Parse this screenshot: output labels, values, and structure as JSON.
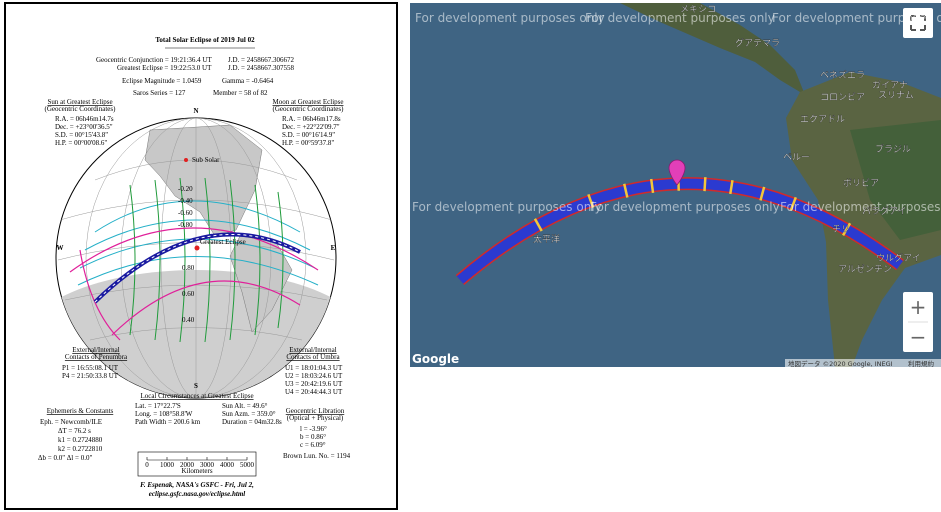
{
  "doc": {
    "title": "Total Solar Eclipse of  2019 Jul 02",
    "summary": [
      [
        "Geocentric Conjunction =  19:21:36.4 UT",
        "J.D. =  2458667.306672"
      ],
      [
        "Greatest Eclipse =  19:22:53.0 UT",
        "J.D. =  2458667.307558"
      ],
      [
        "Eclipse Magnitude =  1.0459",
        "Gamma =  -0.6464"
      ],
      [
        "Saros Series =  127",
        "Member =  58 of 82"
      ]
    ],
    "sun": {
      "heading": "Sun at Greatest Eclipse",
      "subheading": "(Geocentric Coordinates)",
      "lines": [
        "R.A. =  06h46m14.7s",
        "Dec. = +23°00'36.5\"",
        "S.D. =  00°15'43.8\"",
        "H.P. =  00°00'08.6\""
      ]
    },
    "moon": {
      "heading": "Moon at Greatest Eclipse",
      "subheading": "(Geocentric Coordinates)",
      "lines": [
        "R.A. =  06h46m17.8s",
        "Dec. = +22°22'09.7\"",
        "S.D. =  00°16'14.9\"",
        "H.P. =  00°59'37.8\""
      ]
    },
    "compass": {
      "n": "N",
      "s": "S",
      "w": "W",
      "e": "E"
    },
    "globe": {
      "sub_solar": "Sub Solar",
      "greatest_eclipse": "Greatest Eclipse",
      "upper_labels": [
        "-0.20",
        "-0.40",
        "-0.60",
        "-0.80"
      ],
      "lower_labels": [
        "0.80",
        "0.60",
        "0.40"
      ]
    },
    "penumbra": {
      "heading": [
        "External/Internal",
        "Contacts of Penumbra"
      ],
      "lines": [
        "P1 = 16:55:08.1 UT",
        "P4 = 21:50:33.8 UT"
      ]
    },
    "umbra": {
      "heading": [
        "External/Internal",
        "Contacts of Umbra"
      ],
      "lines": [
        "U1 = 18:01:04.3 UT",
        "U2 = 18:03:24.6 UT",
        "U3 = 20:42:19.6 UT",
        "U4 = 20:44:44.3 UT"
      ]
    },
    "local": {
      "heading": "Local Circumstances at Greatest Eclipse",
      "rows": [
        [
          "Lat. =  17°22.7'S",
          "Sun Alt. =  49.6°"
        ],
        [
          "Long. = 108°58.8'W",
          "Sun Azm. = 359.0°"
        ],
        [
          "Path Width = 200.6 km",
          "Duration =  04m32.8s"
        ]
      ]
    },
    "ephemeris": {
      "heading": "Ephemeris & Constants",
      "lines": [
        "Eph. = Newcomb/ILE",
        "ΔT =    76.2 s",
        "k1 = 0.2724880",
        "k2 = 0.2722810",
        "Δb =  0.0\"    Δl =  0.0\""
      ]
    },
    "libration": {
      "heading": "Geocentric Libration",
      "subheading": "(Optical + Physical)",
      "lines": [
        "l =  -3.96°",
        "b =   0.86°",
        "c =   6.09°"
      ],
      "brown": "Brown Lun. No. = 1194"
    },
    "scale": {
      "ticks": [
        0,
        1000,
        2000,
        3000,
        4000,
        5000
      ],
      "unit": "Kilometers"
    },
    "footer": [
      "F. Espenak, NASA's GSFC - Fri, Jul 2,",
      "eclipse.gsfc.nasa.gov/eclipse.html"
    ]
  },
  "map": {
    "watermarks": [
      "For development purposes only",
      "For development purposes only",
      "For development purposes only",
      "For development purposes only",
      "For development purposes only",
      "For development purposes only"
    ],
    "labels": [
      "メキシコ",
      "グアテマラ",
      "ベネズエラ",
      "コロンビア",
      "ガイアナ",
      "スリナム",
      "エクアドル",
      "ペルー",
      "ブラジル",
      "ボリビア",
      "パラグアイ",
      "チリ",
      "ウルグアイ",
      "アルゼンチン",
      "太平洋"
    ],
    "logo": "Google",
    "attribution": "地図データ ©2020 Google, INEGI",
    "terms": "利用規約",
    "zoom_in": "+",
    "zoom_out": "−"
  }
}
